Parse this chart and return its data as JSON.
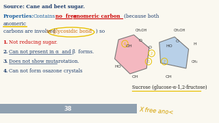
{
  "slide_bg": "#faf8f0",
  "title_source": "Source: Cane and beet sugar.",
  "title_source_color": "#1a3a6b",
  "properties_label": "Properties:",
  "properties_label_color": "#1a5fa0",
  "contains_text": "Contains",
  "contains_color": "#1a5fa0",
  "no_free_text": "no  free",
  "no_free_color": "#cc0000",
  "anomeric_carbon_text": "anomeric carbon",
  "anomeric_carbon_color": "#cc0000",
  "because_text": "(because both",
  "because_color": "#1a3a6b",
  "anomeric_text": "anomeric",
  "anomeric_color": "#1a3a6b",
  "carbons_text": "carbons are involved",
  "carbons_color": "#1a3a6b",
  "glycosidic_text": "in glycosidic bond",
  "glycosidic_color": "#cc6600",
  "so_text": ") so",
  "so_color": "#1a3a6b",
  "bullet_items": [
    "Not reducing sugar.",
    "Can not present in α  and β  forms.",
    "Does not show mutarotation.",
    "Can not form osazone crystals"
  ],
  "bullet_colors": [
    "#cc0000",
    "#1a3a6b",
    "#1a3a6b",
    "#1a3a6b"
  ],
  "bullet_underline": [
    false,
    true,
    true,
    false
  ],
  "sucrose_label": "Sucrose (glucose-α-1,2-fructose)",
  "sucrose_label_color": "#1a1a1a",
  "page_number": "38",
  "page_bar_color": "#8fa0b0",
  "glucose_fill": "#f4b8c0",
  "fructose_fill": "#b8d0e8",
  "annotation_color": "#e8c000",
  "handwriting_color": "#d4a000",
  "dark_text": "#333333"
}
